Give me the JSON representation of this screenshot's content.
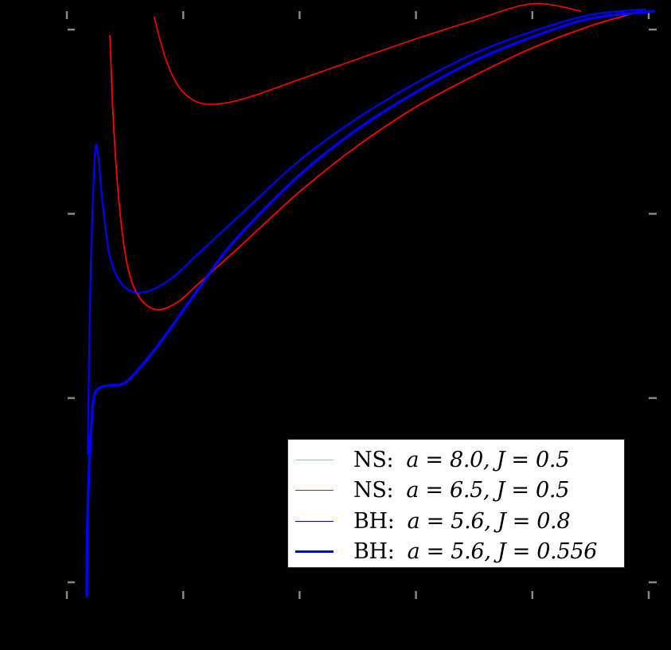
{
  "chart_data": {
    "type": "line",
    "title": "",
    "xlabel": "",
    "ylabel": "",
    "background": "#000000",
    "tick_color": "#888888",
    "grid": false,
    "xlim": [
      0,
      5.04
    ],
    "ylim": [
      -0.1,
      3.1
    ],
    "xticks": [
      0,
      1,
      2,
      3,
      4,
      5
    ],
    "yticks": [
      0,
      1,
      2,
      3
    ],
    "xtick_labels": [],
    "ytick_labels": [],
    "legend_position": "lower right",
    "series": [
      {
        "name": "NS: a = 8.0, J = 0.5",
        "kind": "NS:",
        "params": "a = 8.0, J = 0.5",
        "color": "#ff0000",
        "legend_color": "#ff9999",
        "width": 1.6,
        "points": [
          [
            0.75,
            3.07
          ],
          [
            0.82,
            2.9
          ],
          [
            0.9,
            2.76
          ],
          [
            1.0,
            2.66
          ],
          [
            1.15,
            2.6
          ],
          [
            1.35,
            2.6
          ],
          [
            1.6,
            2.64
          ],
          [
            2.0,
            2.73
          ],
          [
            2.5,
            2.84
          ],
          [
            3.0,
            2.95
          ],
          [
            3.5,
            3.05
          ],
          [
            4.0,
            3.14
          ],
          [
            4.42,
            3.1
          ]
        ]
      },
      {
        "name": "NS: a = 6.5, J = 0.5",
        "kind": "NS:",
        "params": "a = 6.5, J = 0.5",
        "color": "#ff0000",
        "legend_color": "#ff0000",
        "width": 1.8,
        "points": [
          [
            0.37,
            2.97
          ],
          [
            0.4,
            2.5
          ],
          [
            0.45,
            2.05
          ],
          [
            0.52,
            1.72
          ],
          [
            0.62,
            1.55
          ],
          [
            0.77,
            1.48
          ],
          [
            0.95,
            1.52
          ],
          [
            1.13,
            1.62
          ],
          [
            1.5,
            1.83
          ],
          [
            2.0,
            2.12
          ],
          [
            2.5,
            2.37
          ],
          [
            3.0,
            2.58
          ],
          [
            3.5,
            2.75
          ],
          [
            4.0,
            2.9
          ],
          [
            4.5,
            3.02
          ],
          [
            4.88,
            3.09
          ]
        ]
      },
      {
        "name": "BH: a = 5.6, J = 0.8",
        "kind": "BH:",
        "params": "a = 5.6, J = 0.8",
        "color": "#0000ff",
        "legend_color": "#0000ff",
        "width": 2.2,
        "points": [
          [
            0.18,
            0.69
          ],
          [
            0.2,
            1.55
          ],
          [
            0.24,
            2.31
          ],
          [
            0.27,
            2.31
          ],
          [
            0.3,
            2.1
          ],
          [
            0.36,
            1.8
          ],
          [
            0.44,
            1.65
          ],
          [
            0.55,
            1.58
          ],
          [
            0.7,
            1.58
          ],
          [
            0.9,
            1.65
          ],
          [
            1.14,
            1.79
          ],
          [
            1.5,
            2.0
          ],
          [
            2.0,
            2.29
          ],
          [
            2.5,
            2.52
          ],
          [
            3.0,
            2.71
          ],
          [
            3.5,
            2.87
          ],
          [
            4.0,
            2.99
          ],
          [
            4.5,
            3.08
          ],
          [
            4.98,
            3.11
          ]
        ]
      },
      {
        "name": "BH: a = 5.6, J = 0.556",
        "kind": "BH:",
        "params": "a = 5.6, J = 0.556",
        "color": "#0000ff",
        "legend_color": "#0000ff",
        "width": 3.4,
        "points": [
          [
            0.17,
            -0.08
          ],
          [
            0.18,
            0.4
          ],
          [
            0.21,
            0.85
          ],
          [
            0.24,
            1.02
          ],
          [
            0.3,
            1.06
          ],
          [
            0.4,
            1.07
          ],
          [
            0.45,
            1.07
          ],
          [
            0.55,
            1.11
          ],
          [
            0.8,
            1.3
          ],
          [
            1.14,
            1.6
          ],
          [
            1.45,
            1.86
          ],
          [
            2.0,
            2.21
          ],
          [
            2.5,
            2.46
          ],
          [
            3.0,
            2.66
          ],
          [
            3.5,
            2.83
          ],
          [
            4.0,
            2.96
          ],
          [
            4.5,
            3.06
          ],
          [
            5.05,
            3.1
          ]
        ]
      }
    ]
  },
  "legend": {
    "items": [
      {
        "kind": "NS:",
        "params": "a = 8.0, J = 0.5"
      },
      {
        "kind": "NS:",
        "params": "a = 6.5, J = 0.5"
      },
      {
        "kind": "BH:",
        "params": "a = 5.6, J = 0.8"
      },
      {
        "kind": "BH:",
        "params": "a = 5.6, J = 0.556"
      }
    ]
  }
}
